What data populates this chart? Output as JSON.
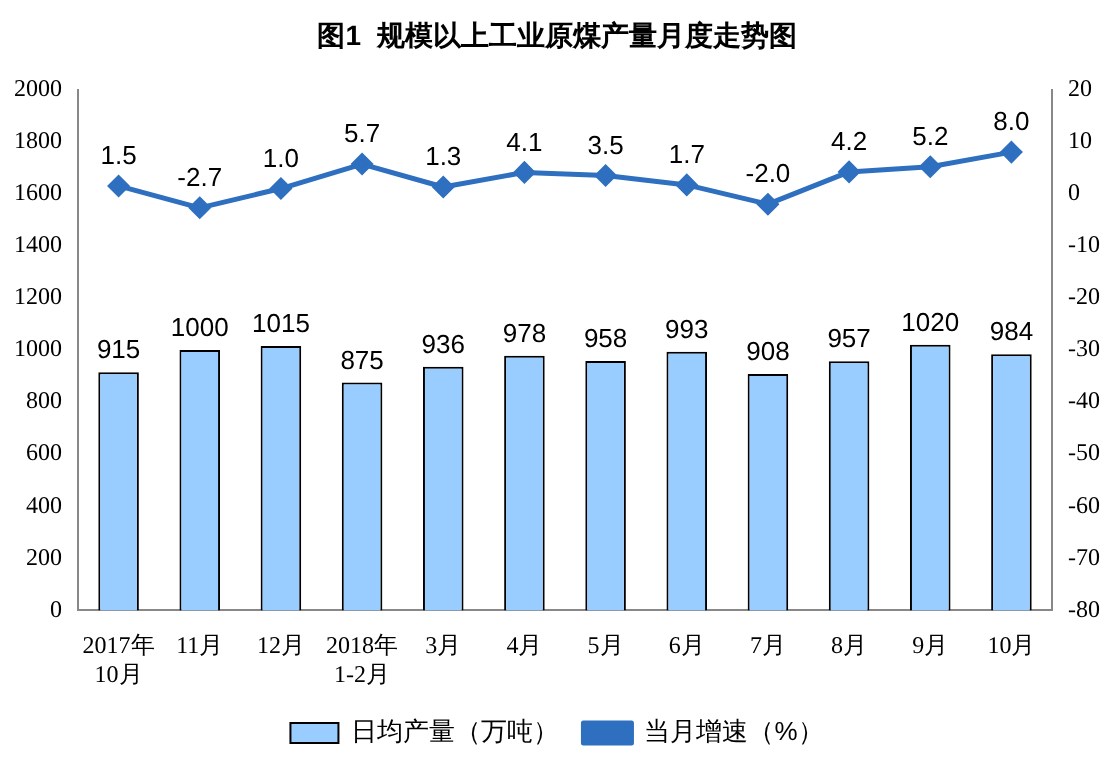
{
  "chart_data": {
    "type": "bar",
    "title": "图1  规模以上工业原煤产量月度走势图",
    "categories": [
      "2017年\n10月",
      "11月",
      "12月",
      "2018年\n1-2月",
      "3月",
      "4月",
      "5月",
      "6月",
      "7月",
      "8月",
      "9月",
      "10月"
    ],
    "series": [
      {
        "name": "日均产量（万吨）",
        "color": "#99ccff",
        "values": [
          915,
          1000,
          1015,
          875,
          936,
          978,
          958,
          993,
          908,
          957,
          1020,
          984
        ]
      },
      {
        "name": "当月增速（%）",
        "type": "line",
        "axis": "y2",
        "color": "#2e6fc0",
        "marker": "diamond",
        "values": [
          1.5,
          -2.7,
          1.0,
          5.7,
          1.3,
          4.1,
          3.5,
          1.7,
          -2.0,
          4.2,
          5.2,
          8.0
        ],
        "value_labels": [
          "1.5",
          "-2.7",
          "1.0",
          "5.7",
          "1.3",
          "4.1",
          "3.5",
          "1.7",
          "-2.0",
          "4.2",
          "5.2",
          "8.0"
        ]
      }
    ],
    "ylim": [
      0,
      2000
    ],
    "yticks": [
      0,
      200,
      400,
      600,
      800,
      1000,
      1200,
      1400,
      1600,
      1800,
      2000
    ],
    "y2lim": [
      -80,
      20
    ],
    "y2ticks": [
      -80,
      -70,
      -60,
      -50,
      -40,
      -30,
      -20,
      -10,
      0,
      10,
      20
    ],
    "data_labels": true,
    "grid": false,
    "legend": "bottom"
  }
}
